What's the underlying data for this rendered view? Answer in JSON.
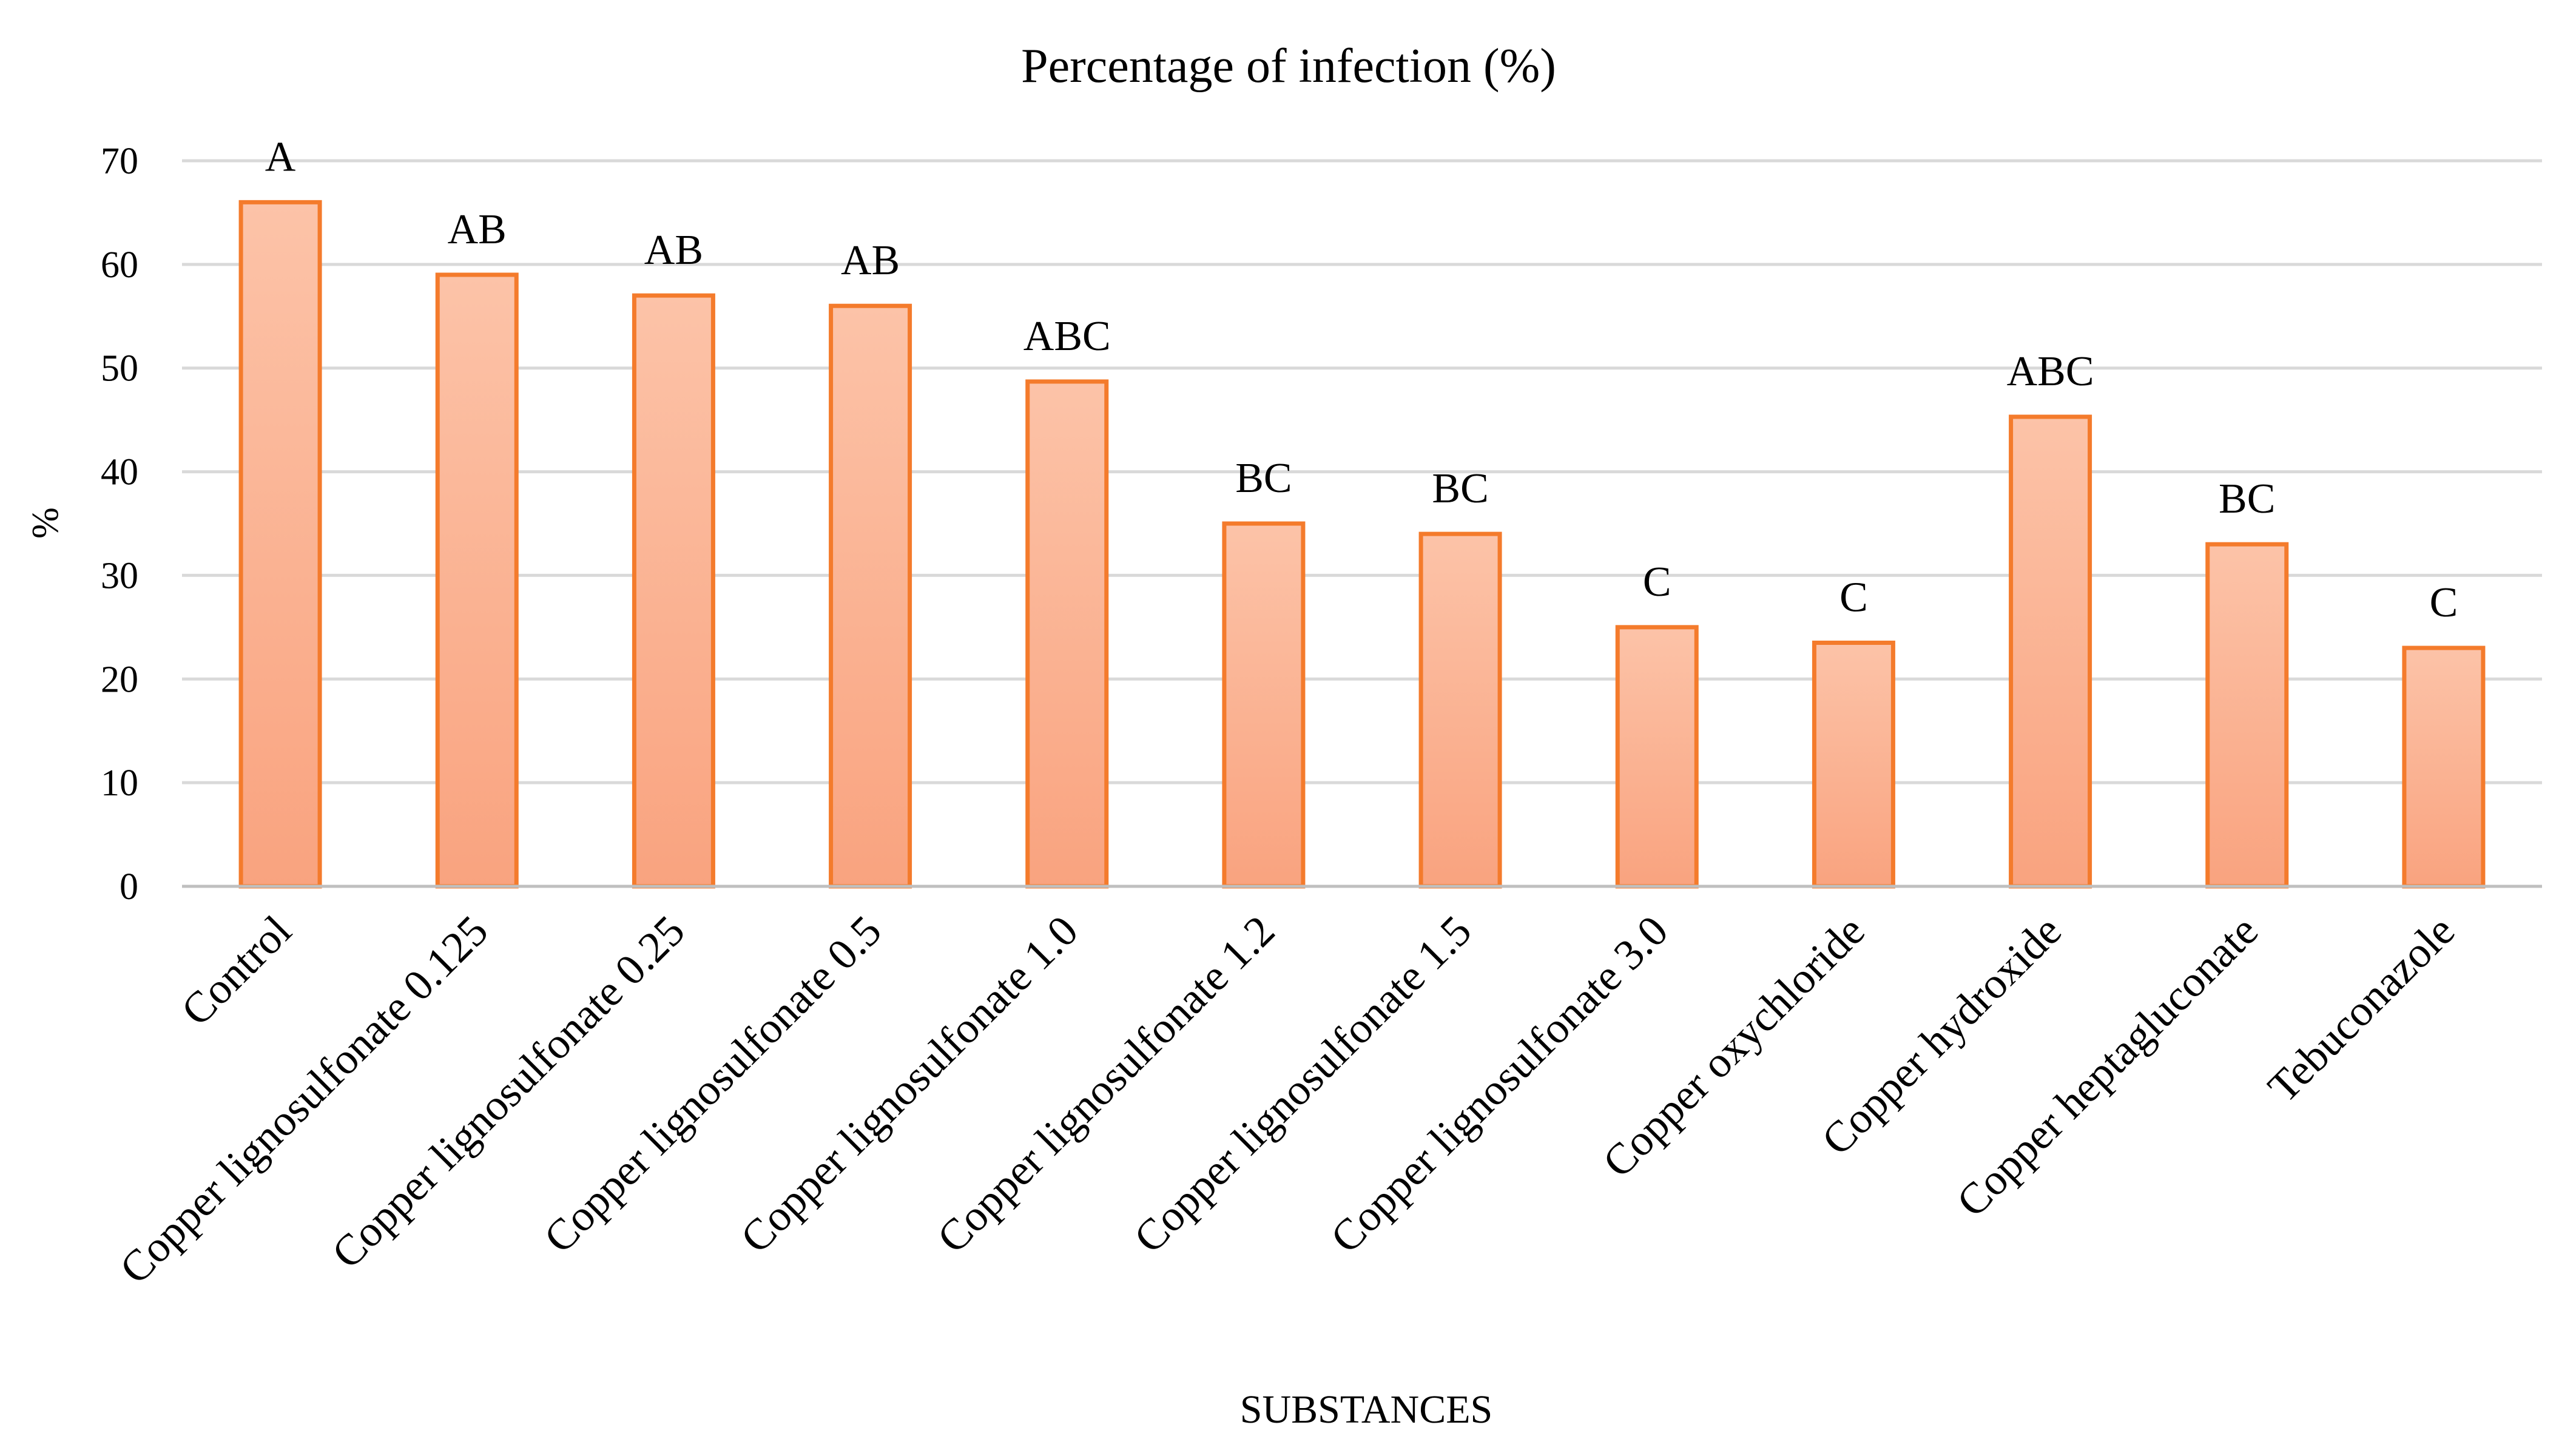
{
  "chart_data": {
    "type": "bar",
    "title": "Percentage of infection (%)",
    "xlabel": "SUBSTANCES",
    "ylabel": "%",
    "ylim": [
      0,
      70
    ],
    "yticks": [
      0,
      10,
      20,
      30,
      40,
      50,
      60,
      70
    ],
    "grid": true,
    "categories": [
      "Control",
      "Copper lignosulfonate 0.125",
      "Copper lignosulfonate 0.25",
      "Copper lignosulfonate 0.5",
      "Copper lignosulfonate 1.0",
      "Copper lignosulfonate 1.2",
      "Copper lignosulfonate 1.5",
      "Copper lignosulfonate 3.0",
      "Copper oxychloride",
      "Copper hydroxide",
      "Copper heptagluconate",
      "Tebuconazole"
    ],
    "values": [
      66,
      59,
      57,
      56,
      48.7,
      35,
      34,
      25,
      23.5,
      45.3,
      33,
      23
    ],
    "significance_labels": [
      "A",
      "AB",
      "AB",
      "AB",
      "ABC",
      "BC",
      "BC",
      "C",
      "C",
      "ABC",
      "BC",
      "C"
    ],
    "colors": {
      "bar_fill_top": "#fcc3a8",
      "bar_fill_bottom": "#f9a37f",
      "bar_stroke": "#f47b2c",
      "grid": "#d9d9d9",
      "axis": "#bfbfbf"
    }
  }
}
